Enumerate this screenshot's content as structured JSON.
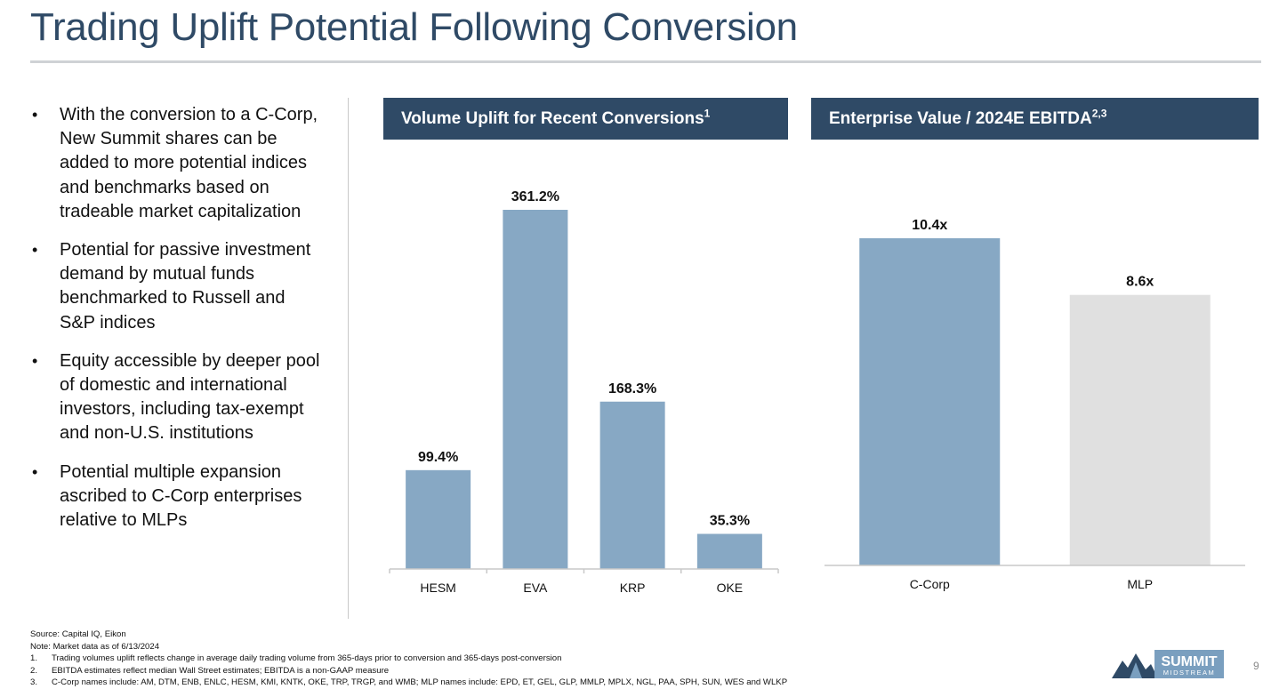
{
  "slide": {
    "title": "Trading Uplift Potential Following Conversion",
    "page_number": "9"
  },
  "bullets": [
    "With the conversion to a C-Corp, New Summit shares can be added to more potential indices and benchmarks based on tradeable market capitalization",
    "Potential for passive investment demand by mutual funds benchmarked to Russell and S&P indices",
    "Equity accessible by deeper pool of domestic and international investors, including tax-exempt and non-U.S. institutions",
    "Potential multiple expansion ascribed to C-Corp enterprises relative to MLPs"
  ],
  "bullet_symbol": "•",
  "chart_headers": {
    "volume": {
      "text": "Volume Uplift for Recent Conversions",
      "sup": "1"
    },
    "ev": {
      "text": "Enterprise Value / 2024E EBITDA",
      "sup": "2,3"
    }
  },
  "chart_data": [
    {
      "type": "bar",
      "title": "Volume Uplift for Recent Conversions",
      "categories": [
        "HESM",
        "EVA",
        "KRP",
        "OKE"
      ],
      "values": [
        99.4,
        361.2,
        168.3,
        35.3
      ],
      "labels": [
        "99.4%",
        "361.2%",
        "168.3%",
        "35.3%"
      ],
      "colors": [
        "#87a8c4",
        "#87a8c4",
        "#87a8c4",
        "#87a8c4"
      ],
      "ylim": [
        0,
        361.2
      ],
      "xlabel": "",
      "ylabel": "",
      "grid": false
    },
    {
      "type": "bar",
      "title": "Enterprise Value / 2024E EBITDA",
      "categories": [
        "C-Corp",
        "MLP"
      ],
      "values": [
        10.4,
        8.6
      ],
      "labels": [
        "10.4x",
        "8.6x"
      ],
      "colors": [
        "#87a8c4",
        "#e0e0e0"
      ],
      "ylim": [
        0,
        10.4
      ],
      "xlabel": "",
      "ylabel": "",
      "grid": false
    }
  ],
  "footnotes": {
    "source": "Source: Capital IQ, Eikon",
    "note": "Note: Market data as of 6/13/2024",
    "items": [
      {
        "num": "1.",
        "text": "Trading volumes uplift reflects change in average daily trading volume from 365-days prior to conversion and 365-days post-conversion"
      },
      {
        "num": "2.",
        "text": "EBITDA estimates reflect median Wall Street estimates; EBITDA is a non-GAAP measure"
      },
      {
        "num": "3.",
        "text": "C-Corp names include: AM, DTM, ENB, ENLC, HESM, KMI, KNTK, OKE, TRP, TRGP, and WMB; MLP names include: EPD, ET, GEL, GLP, MMLP, MPLX, NGL, PAA, SPH, SUN, WES and WLKP"
      }
    ]
  },
  "logo": {
    "name": "SUMMIT",
    "sub": "MIDSTREAM",
    "color": "#2f4a66",
    "accent": "#7a9fbf"
  }
}
